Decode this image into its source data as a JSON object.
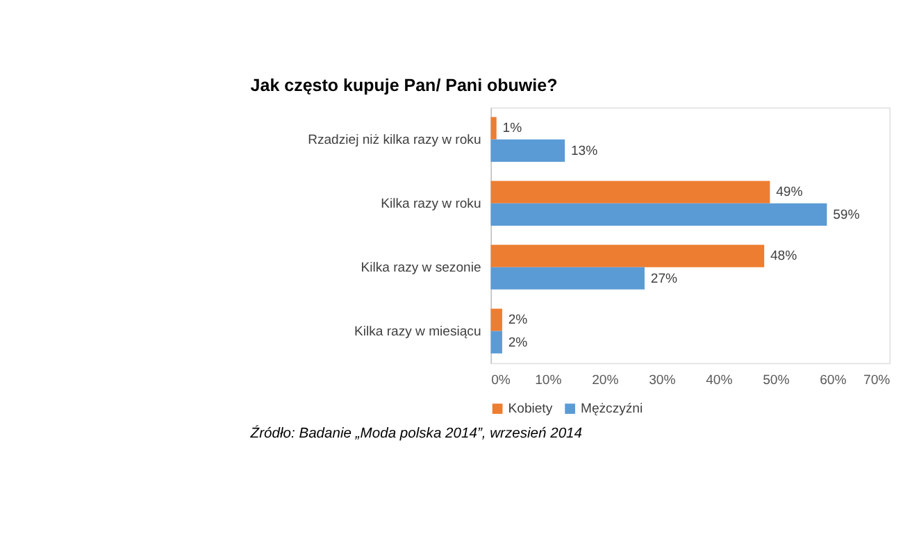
{
  "chart_data": {
    "type": "bar",
    "orientation": "horizontal",
    "title": "Jak często kupuje Pan/ Pani obuwie?",
    "categories": [
      "Rzadziej niż kilka razy w roku",
      "Kilka razy w roku",
      "Kilka razy w sezonie",
      "Kilka razy w miesiącu"
    ],
    "series": [
      {
        "name": "Kobiety",
        "color": "#ed7d31",
        "values": [
          1,
          49,
          48,
          2
        ],
        "value_labels": [
          "1%",
          "49%",
          "48%",
          "2%"
        ]
      },
      {
        "name": "Mężczyźni",
        "color": "#5b9bd5",
        "values": [
          13,
          59,
          27,
          2
        ],
        "value_labels": [
          "13%",
          "59%",
          "27%",
          "2%"
        ]
      }
    ],
    "xlim": [
      0,
      70
    ],
    "xticks": [
      {
        "value": 0,
        "label": "0%"
      },
      {
        "value": 10,
        "label": "10%"
      },
      {
        "value": 20,
        "label": "20%"
      },
      {
        "value": 30,
        "label": "30%"
      },
      {
        "value": 40,
        "label": "40%"
      },
      {
        "value": 50,
        "label": "50%"
      },
      {
        "value": 60,
        "label": "60%"
      },
      {
        "value": 70,
        "label": "70%"
      }
    ],
    "grid": false,
    "legend": "bottom",
    "data_labels": true,
    "annotations": [
      "Źródło: Badanie „Moda polska 2014”, wrzesień 2014"
    ]
  }
}
